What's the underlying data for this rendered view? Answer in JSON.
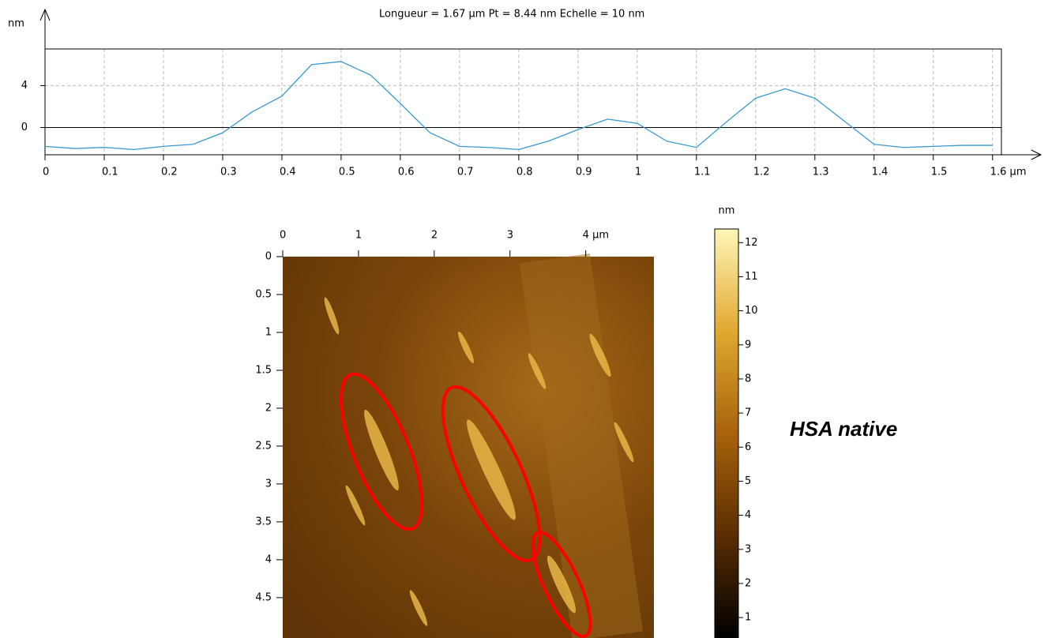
{
  "chart_data": [
    {
      "type": "line",
      "title": "Longueur = 1.67 µm  Pt = 8.44 nm  Echelle = 10 nm",
      "y_label": "nm",
      "x": [
        0,
        0.05,
        0.1,
        0.15,
        0.2,
        0.25,
        0.3,
        0.35,
        0.4,
        0.45,
        0.5,
        0.55,
        0.6,
        0.65,
        0.7,
        0.75,
        0.8,
        0.85,
        0.9,
        0.95,
        1.0,
        1.05,
        1.1,
        1.15,
        1.2,
        1.25,
        1.3,
        1.35,
        1.4,
        1.45,
        1.5,
        1.55,
        1.6
      ],
      "series": [
        {
          "color": "#3a9ad0",
          "values": [
            -1.8,
            -2.0,
            -1.9,
            -2.1,
            -1.8,
            -1.6,
            -0.5,
            1.5,
            3.0,
            6.0,
            6.3,
            5.0,
            2.3,
            -0.5,
            -1.8,
            -1.9,
            -2.1,
            -1.3,
            -0.2,
            0.8,
            0.4,
            -1.3,
            -1.9,
            0.5,
            2.8,
            3.7,
            2.8,
            0.6,
            -1.6,
            -1.9,
            -1.8,
            -1.7,
            -1.7
          ]
        }
      ],
      "xlim": [
        0,
        1.615
      ],
      "ylim": [
        -2.6,
        7.5
      ],
      "xticks": [
        0,
        0.1,
        0.2,
        0.3,
        0.4,
        0.5,
        0.6,
        0.7,
        0.8,
        0.9,
        1,
        1.1,
        1.2,
        1.3,
        1.4,
        1.5,
        {
          "value": 1.6,
          "label": "1.6 µm"
        }
      ],
      "yticks": [
        0,
        4
      ],
      "grid": true
    },
    {
      "type": "image",
      "xlim": [
        0,
        4.9
      ],
      "ylim": [
        0,
        4.97
      ],
      "xticks": [
        0,
        1,
        2,
        3,
        {
          "value": 4,
          "label": "4 µm"
        }
      ],
      "yticks": [
        0,
        0.5,
        1,
        1.5,
        2,
        2.5,
        3,
        3.5,
        4,
        4.5
      ],
      "colorbar": {
        "label": "nm",
        "lim": [
          0.4,
          12.4
        ],
        "ticks": [
          1,
          2,
          3,
          4,
          5,
          6,
          7,
          8,
          9,
          10,
          11,
          12
        ],
        "colors": [
          "#000000",
          "#5a2d02",
          "#a8620a",
          "#e0a830",
          "#fff6b8"
        ]
      },
      "annotation": "HSA native"
    }
  ]
}
